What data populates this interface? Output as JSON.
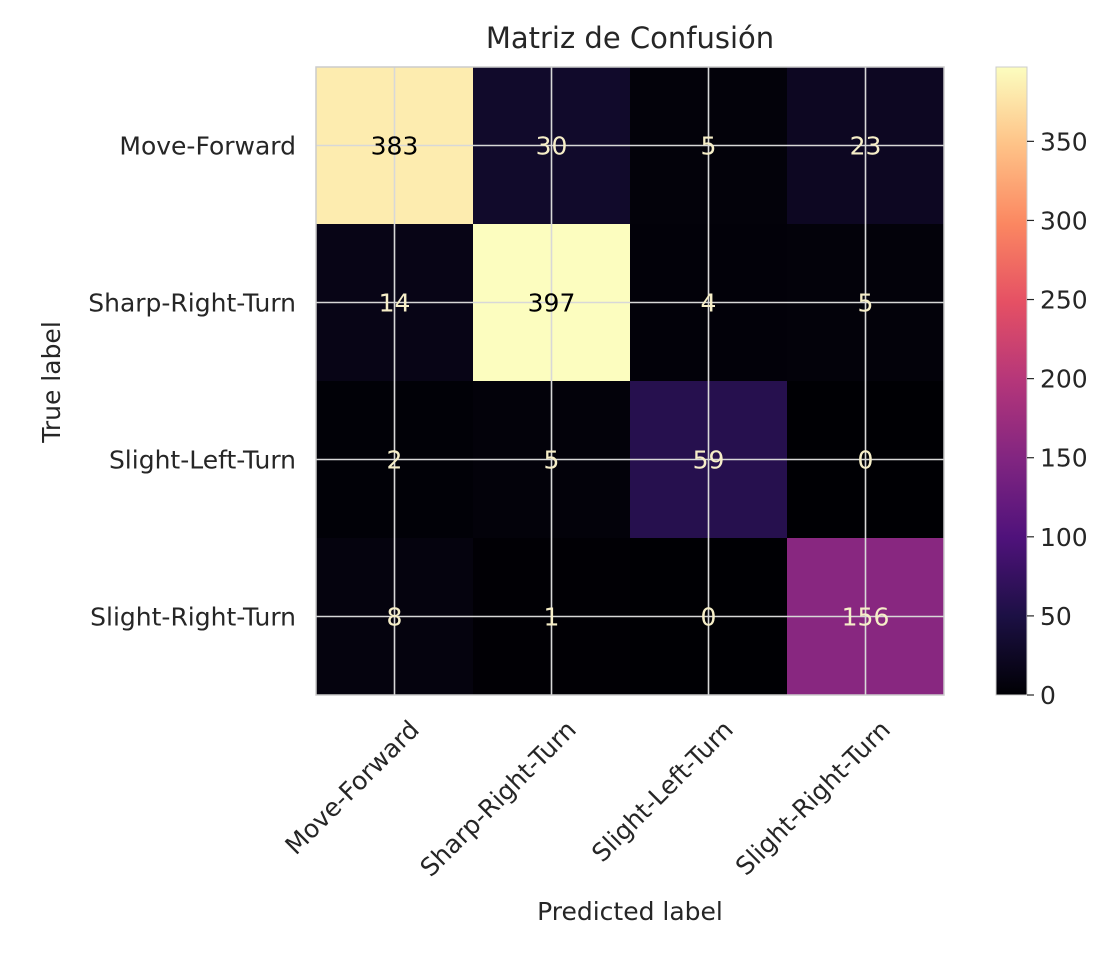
{
  "chart_data": {
    "type": "heatmap",
    "title": "Matriz de Confusión",
    "xlabel": "Predicted label",
    "ylabel": "True label",
    "x_categories": [
      "Move-Forward",
      "Sharp-Right-Turn",
      "Slight-Left-Turn",
      "Slight-Right-Turn"
    ],
    "y_categories": [
      "Move-Forward",
      "Sharp-Right-Turn",
      "Slight-Left-Turn",
      "Slight-Right-Turn"
    ],
    "values": [
      [
        383,
        30,
        5,
        23
      ],
      [
        14,
        397,
        4,
        5
      ],
      [
        2,
        5,
        59,
        0
      ],
      [
        8,
        1,
        0,
        156
      ]
    ],
    "colormap": "magma",
    "color_range": [
      0,
      397
    ],
    "colorbar_ticks": [
      0,
      50,
      100,
      150,
      200,
      250,
      300,
      350
    ],
    "grid": true,
    "colorbar_position": "right"
  }
}
